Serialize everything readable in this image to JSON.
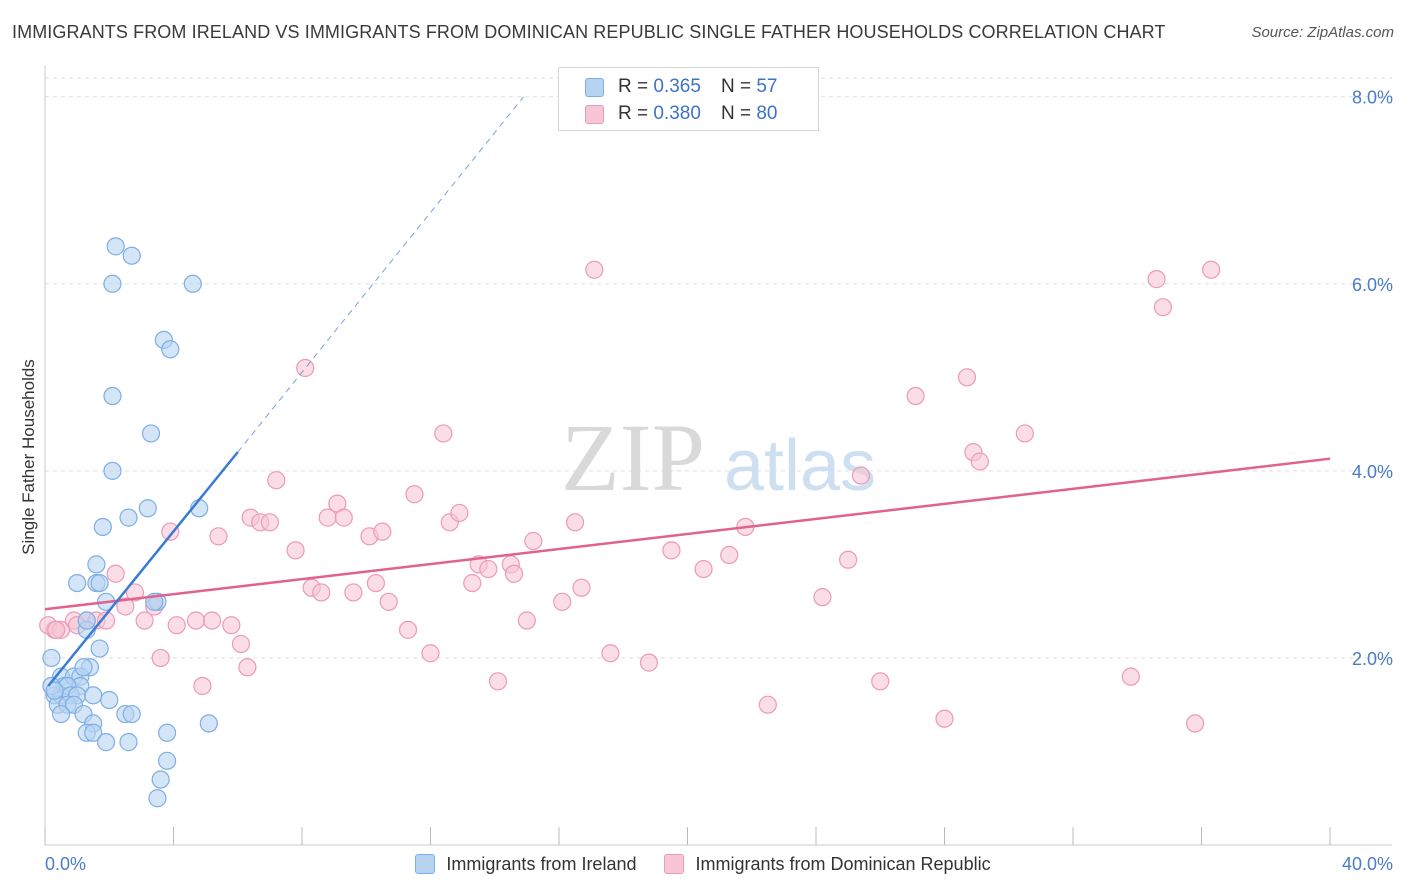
{
  "title": "IMMIGRANTS FROM IRELAND VS IMMIGRANTS FROM DOMINICAN REPUBLIC SINGLE FATHER HOUSEHOLDS CORRELATION CHART",
  "source": "Source: ZipAtlas.com",
  "watermark": {
    "zip": "ZIP",
    "atlas": "atlas"
  },
  "colors": {
    "blue_fill": "#b7d3f2",
    "blue_stroke": "#7eaee3",
    "blue_line": "#3a7bd5",
    "pink_fill": "#f7c6d6",
    "pink_stroke": "#ec9ab5",
    "pink_line": "#e0628e",
    "axis_text": "#4a7cc9",
    "grid": "#dddddd"
  },
  "legend": {
    "rows": [
      {
        "r_label": "R = ",
        "r_value": "0.365",
        "n_label": "N = ",
        "n_value": "57"
      },
      {
        "r_label": "R = ",
        "r_value": "0.380",
        "n_label": "N = ",
        "n_value": "80"
      }
    ]
  },
  "chart_data": {
    "type": "scatter",
    "title": "IMMIGRANTS FROM IRELAND VS IMMIGRANTS FROM DOMINICAN REPUBLIC SINGLE FATHER HOUSEHOLDS CORRELATION CHART",
    "xlabel": "",
    "ylabel": "Single Father Households",
    "xlim": [
      0,
      40
    ],
    "ylim": [
      0,
      8
    ],
    "x_tick_labels": {
      "left": "0.0%",
      "right": "40.0%"
    },
    "y_ticks": [
      {
        "value": 2,
        "label": "2.0%"
      },
      {
        "value": 4,
        "label": "4.0%"
      },
      {
        "value": 6,
        "label": "6.0%"
      },
      {
        "value": 8,
        "label": "8.0%"
      }
    ],
    "series": [
      {
        "name": "Immigrants from Ireland",
        "color": "blue",
        "r": 0.365,
        "n": 57,
        "trend": {
          "x0": 0.1,
          "y0": 1.7,
          "x1": 6.0,
          "y1": 4.2,
          "dashed_to_x": 14.9,
          "dashed_to_y": 8.0
        },
        "points": [
          [
            2.2,
            6.4
          ],
          [
            2.7,
            6.3
          ],
          [
            2.1,
            6.0
          ],
          [
            4.6,
            6.0
          ],
          [
            3.7,
            5.4
          ],
          [
            3.9,
            5.3
          ],
          [
            2.1,
            4.8
          ],
          [
            3.3,
            4.4
          ],
          [
            2.1,
            4.0
          ],
          [
            3.2,
            3.6
          ],
          [
            4.8,
            3.6
          ],
          [
            1.8,
            3.4
          ],
          [
            2.6,
            3.5
          ],
          [
            1.6,
            3.0
          ],
          [
            1.0,
            2.8
          ],
          [
            1.6,
            2.8
          ],
          [
            1.7,
            2.8
          ],
          [
            1.9,
            2.6
          ],
          [
            3.5,
            2.6
          ],
          [
            3.4,
            2.6
          ],
          [
            1.3,
            2.3
          ],
          [
            1.3,
            2.4
          ],
          [
            1.7,
            2.1
          ],
          [
            1.4,
            1.9
          ],
          [
            0.2,
            2.0
          ],
          [
            0.5,
            1.8
          ],
          [
            0.6,
            1.7
          ],
          [
            0.9,
            1.8
          ],
          [
            1.1,
            1.8
          ],
          [
            1.1,
            1.7
          ],
          [
            0.3,
            1.6
          ],
          [
            0.5,
            1.6
          ],
          [
            0.7,
            1.7
          ],
          [
            0.8,
            1.6
          ],
          [
            1.0,
            1.6
          ],
          [
            0.4,
            1.5
          ],
          [
            0.7,
            1.5
          ],
          [
            1.5,
            1.6
          ],
          [
            0.9,
            1.5
          ],
          [
            0.5,
            1.4
          ],
          [
            1.2,
            1.4
          ],
          [
            2.5,
            1.4
          ],
          [
            2.7,
            1.4
          ],
          [
            1.5,
            1.3
          ],
          [
            1.3,
            1.2
          ],
          [
            1.5,
            1.2
          ],
          [
            3.8,
            1.2
          ],
          [
            5.1,
            1.3
          ],
          [
            1.9,
            1.1
          ],
          [
            2.6,
            1.1
          ],
          [
            3.8,
            0.9
          ],
          [
            3.6,
            0.7
          ],
          [
            3.5,
            0.5
          ],
          [
            0.2,
            1.7
          ],
          [
            1.2,
            1.9
          ],
          [
            0.3,
            1.65
          ],
          [
            2.0,
            1.55
          ]
        ]
      },
      {
        "name": "Immigrants from Dominican Republic",
        "color": "pink",
        "r": 0.38,
        "n": 80,
        "trend": {
          "x0": 0.0,
          "y0": 2.52,
          "x1": 40.0,
          "y1": 4.13
        },
        "points": [
          [
            0.3,
            2.3
          ],
          [
            0.1,
            2.35
          ],
          [
            0.5,
            2.3
          ],
          [
            0.9,
            2.4
          ],
          [
            1.3,
            2.4
          ],
          [
            1.6,
            2.4
          ],
          [
            1.9,
            2.4
          ],
          [
            2.2,
            2.9
          ],
          [
            2.5,
            2.55
          ],
          [
            2.8,
            2.7
          ],
          [
            3.1,
            2.4
          ],
          [
            3.4,
            2.55
          ],
          [
            3.6,
            2.0
          ],
          [
            3.9,
            3.35
          ],
          [
            4.1,
            2.35
          ],
          [
            4.7,
            2.4
          ],
          [
            4.9,
            1.7
          ],
          [
            5.2,
            2.4
          ],
          [
            5.4,
            3.3
          ],
          [
            5.8,
            2.35
          ],
          [
            6.1,
            2.15
          ],
          [
            6.3,
            1.9
          ],
          [
            6.4,
            3.5
          ],
          [
            6.7,
            3.45
          ],
          [
            7.0,
            3.45
          ],
          [
            7.2,
            3.9
          ],
          [
            7.8,
            3.15
          ],
          [
            8.1,
            5.1
          ],
          [
            8.3,
            2.75
          ],
          [
            8.6,
            2.7
          ],
          [
            8.8,
            3.5
          ],
          [
            9.1,
            3.65
          ],
          [
            9.3,
            3.5
          ],
          [
            9.6,
            2.7
          ],
          [
            10.1,
            3.3
          ],
          [
            10.3,
            2.8
          ],
          [
            10.5,
            3.35
          ],
          [
            10.7,
            2.6
          ],
          [
            11.3,
            2.3
          ],
          [
            11.5,
            3.75
          ],
          [
            12.0,
            2.05
          ],
          [
            12.4,
            4.4
          ],
          [
            12.6,
            3.45
          ],
          [
            12.9,
            3.55
          ],
          [
            13.3,
            2.8
          ],
          [
            13.5,
            3.0
          ],
          [
            13.8,
            2.95
          ],
          [
            14.1,
            1.75
          ],
          [
            14.5,
            3.0
          ],
          [
            14.6,
            2.9
          ],
          [
            15.0,
            2.4
          ],
          [
            15.2,
            3.25
          ],
          [
            16.1,
            2.6
          ],
          [
            16.5,
            3.45
          ],
          [
            16.7,
            2.75
          ],
          [
            17.1,
            6.15
          ],
          [
            17.6,
            2.05
          ],
          [
            18.8,
            1.95
          ],
          [
            19.5,
            3.15
          ],
          [
            20.5,
            2.95
          ],
          [
            21.3,
            3.1
          ],
          [
            21.8,
            3.4
          ],
          [
            22.5,
            1.5
          ],
          [
            24.2,
            2.65
          ],
          [
            25.0,
            3.05
          ],
          [
            25.4,
            3.95
          ],
          [
            26.0,
            1.75
          ],
          [
            27.1,
            4.8
          ],
          [
            28.0,
            1.35
          ],
          [
            28.7,
            5.0
          ],
          [
            28.9,
            4.2
          ],
          [
            29.1,
            4.1
          ],
          [
            30.5,
            4.4
          ],
          [
            33.8,
            1.8
          ],
          [
            34.6,
            6.05
          ],
          [
            34.8,
            5.75
          ],
          [
            35.8,
            1.3
          ],
          [
            36.3,
            6.15
          ],
          [
            0.35,
            2.3
          ],
          [
            1.0,
            2.35
          ]
        ]
      }
    ]
  },
  "bottom_legend": {
    "items": [
      {
        "label": "Immigrants from Ireland"
      },
      {
        "label": "Immigrants from Dominican Republic"
      }
    ]
  }
}
